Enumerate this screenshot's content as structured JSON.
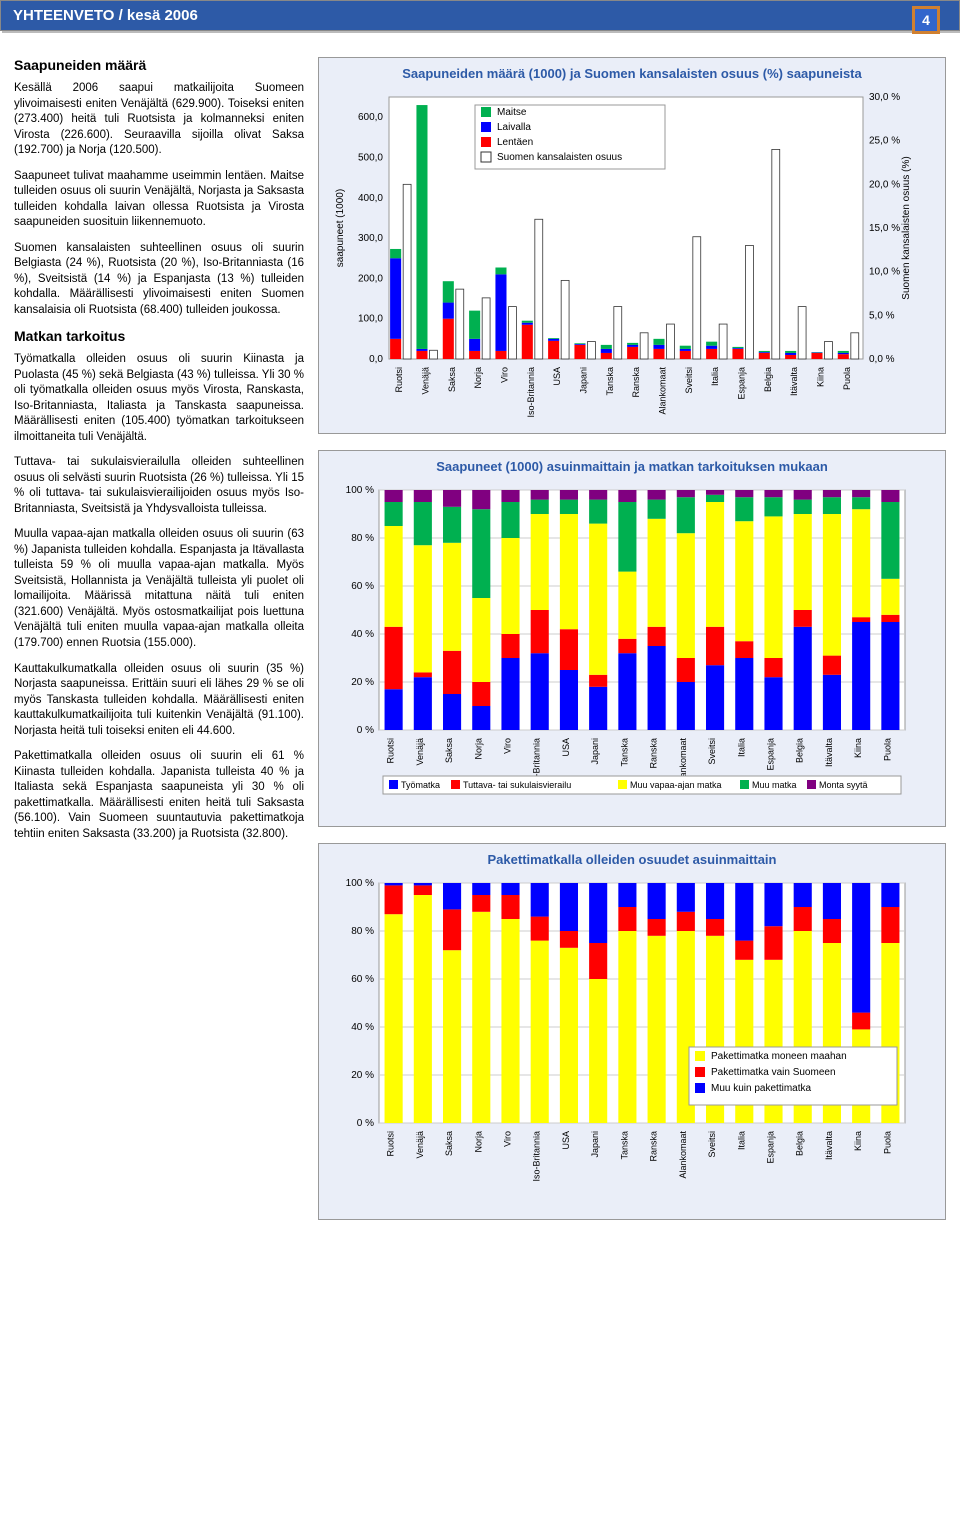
{
  "header": {
    "title": "YHTEENVETO / kesä 2006",
    "page_number": "4"
  },
  "left_column": {
    "section1_title": "Saapuneiden määrä",
    "section1_paragraphs": [
      "Kesällä 2006 saapui matkailijoita Suomeen ylivoimaisesti eniten Venäjältä (629.900). Toiseksi eniten (273.400) heitä tuli Ruotsista ja kolmanneksi eniten Virosta (226.600). Seuraavilla sijoilla olivat Saksa (192.700) ja Norja (120.500).",
      "Saapuneet tulivat maahamme useimmin lentäen. Maitse tulleiden osuus oli suurin Venäjältä, Norjasta ja Saksasta tulleiden kohdalla laivan ollessa Ruotsista ja Virosta saapuneiden suosituin liikennemuoto.",
      "Suomen kansalaisten suhteellinen osuus oli suurin Belgiasta (24 %), Ruotsista (20 %), Iso-Britanniasta (16 %), Sveitsistä (14 %) ja Espanjasta (13 %) tulleiden kohdalla. Määrällisesti ylivoimaisesti eniten Suomen kansalaisia oli Ruotsista (68.400) tulleiden joukossa."
    ],
    "section2_title": "Matkan tarkoitus",
    "section2_paragraphs": [
      "Työmatkalla olleiden osuus oli suurin Kiinasta ja Puolasta (45 %) sekä Belgiasta (43 %) tulleissa. Yli 30 % oli työmatkalla olleiden osuus myös Virosta, Ranskasta, Iso-Britanniasta, Italiasta ja Tanskasta saapuneissa. Määrällisesti eniten (105.400) työmatkan tarkoitukseen ilmoittaneita tuli Venäjältä.",
      "Tuttava- tai sukulaisvierailulla olleiden suhteellinen osuus oli selvästi suurin Ruotsista (26 %) tulleissa. Yli 15 % oli tuttava- tai sukulaisvierailijoiden osuus myös Iso-Britanniasta, Sveitsistä ja Yhdysvalloista tulleissa.",
      "Muulla vapaa-ajan matkalla olleiden osuus oli suurin (63 %) Japanista tulleiden kohdalla. Espanjasta ja Itävallasta tulleista 59 % oli muulla vapaa-ajan matkalla. Myös Sveitsistä, Hollannista ja Venäjältä tulleista yli puolet oli lomailijoita. Määrissä mitattuna näitä tuli eniten (321.600) Venäjältä. Myös ostosmatkailijat pois luettuna Venäjältä tuli eniten muulla vapaa-ajan matkalla olleita (179.700) ennen Ruotsia (155.000).",
      "Kauttakulkumatkalla olleiden osuus oli suurin (35 %) Norjasta saapuneissa. Erittäin suuri eli lähes 29 % se oli myös Tanskasta tulleiden kohdalla. Määrällisesti eniten kauttakulkumatkailijoita tuli kuitenkin Venäjältä (91.100). Norjasta heitä tuli toiseksi eniten eli 44.600.",
      "Pakettimatkalla olleiden osuus oli suurin eli 61 % Kiinasta tulleiden kohdalla. Japanista tulleista 40 % ja Italiasta sekä Espanjasta saapuneista yli 30 % oli pakettimatkalla. Määrällisesti eniten heitä tuli Saksasta (56.100). Vain Suomeen suuntautuvia pakettimatkoja tehtiin eniten Saksasta (33.200) ja Ruotsista (32.800)."
    ]
  },
  "chart1": {
    "title": "Saapuneiden määrä (1000) ja Suomen kansalaisten osuus (%) saapuneista",
    "type": "stacked-bar-with-line",
    "ylabel_left": "saapuneet (1000)",
    "ylabel_right": "Suomen kansalaisten osuus (%)",
    "yticks_left": [
      0,
      100,
      200,
      300,
      400,
      500,
      600
    ],
    "yticks_right": [
      "0,0 %",
      "5,0 %",
      "10,0 %",
      "15,0 %",
      "20,0 %",
      "25,0 %",
      "30,0 %"
    ],
    "ytick_labels_left": [
      "0,0",
      "100,0",
      "200,0",
      "300,0",
      "400,0",
      "500,0",
      "600,0"
    ],
    "ylim_left": [
      0,
      650
    ],
    "ylim_right": [
      0,
      30
    ],
    "legend_bar": [
      "Maitse",
      "Laivalla",
      "Lentäen",
      "Suomen kansalaisten osuus"
    ],
    "legend_colors": [
      "#00b050",
      "#0000ff",
      "#ff0000",
      "#ffffff"
    ],
    "categories": [
      "Ruotsi",
      "Venäjä",
      "Saksa",
      "Norja",
      "Viro",
      "Iso-Britannia",
      "USA",
      "Japani",
      "Tanska",
      "Ranska",
      "Alankomaat",
      "Sveitsi",
      "Italia",
      "Espanja",
      "Belgia",
      "Itävalta",
      "Kiina",
      "Puola"
    ],
    "stack_colors": [
      "#ff0000",
      "#0000ff",
      "#00b050"
    ],
    "data": [
      {
        "lentaen": 50,
        "laivalla": 200,
        "maitse": 23,
        "pct": 20
      },
      {
        "lentaen": 20,
        "laivalla": 5,
        "maitse": 605,
        "pct": 1
      },
      {
        "lentaen": 100,
        "laivalla": 40,
        "maitse": 53,
        "pct": 8
      },
      {
        "lentaen": 20,
        "laivalla": 30,
        "maitse": 70,
        "pct": 7
      },
      {
        "lentaen": 20,
        "laivalla": 190,
        "maitse": 17,
        "pct": 6
      },
      {
        "lentaen": 85,
        "laivalla": 5,
        "maitse": 5,
        "pct": 16
      },
      {
        "lentaen": 45,
        "laivalla": 5,
        "maitse": 2,
        "pct": 9
      },
      {
        "lentaen": 35,
        "laivalla": 2,
        "maitse": 2,
        "pct": 2
      },
      {
        "lentaen": 15,
        "laivalla": 10,
        "maitse": 10,
        "pct": 6
      },
      {
        "lentaen": 30,
        "laivalla": 5,
        "maitse": 5,
        "pct": 3
      },
      {
        "lentaen": 25,
        "laivalla": 10,
        "maitse": 15,
        "pct": 4
      },
      {
        "lentaen": 20,
        "laivalla": 5,
        "maitse": 8,
        "pct": 14
      },
      {
        "lentaen": 25,
        "laivalla": 8,
        "maitse": 10,
        "pct": 4
      },
      {
        "lentaen": 25,
        "laivalla": 2,
        "maitse": 3,
        "pct": 13
      },
      {
        "lentaen": 15,
        "laivalla": 2,
        "maitse": 3,
        "pct": 24
      },
      {
        "lentaen": 10,
        "laivalla": 5,
        "maitse": 5,
        "pct": 6
      },
      {
        "lentaen": 15,
        "laivalla": 1,
        "maitse": 1,
        "pct": 2
      },
      {
        "lentaen": 12,
        "laivalla": 3,
        "maitse": 5,
        "pct": 3
      }
    ]
  },
  "chart2": {
    "title": "Saapuneet (1000) asuinmaittain ja matkan tarkoituksen mukaan",
    "type": "stacked-bar-100",
    "yticks": [
      "0 %",
      "20 %",
      "40 %",
      "60 %",
      "80 %",
      "100 %"
    ],
    "categories": [
      "Ruotsi",
      "Venäjä",
      "Saksa",
      "Norja",
      "Viro",
      "Iso-Britannia",
      "USA",
      "Japani",
      "Tanska",
      "Ranska",
      "Alankomaat",
      "Sveitsi",
      "Italia",
      "Espanja",
      "Belgia",
      "Itävalta",
      "Kiina",
      "Puola"
    ],
    "legend": [
      "Työmatka",
      "Tuttava- tai sukulaisvierailu",
      "Muu vapaa-ajan matka",
      "Muu matka",
      "Monta syytä"
    ],
    "legend_colors": [
      "#0000ff",
      "#ff0000",
      "#ffff00",
      "#00b050",
      "#800080"
    ],
    "data": [
      {
        "tyomatka": 17,
        "tuttava": 26,
        "vapaa": 42,
        "muu": 10,
        "monta": 5
      },
      {
        "tyomatka": 22,
        "tuttava": 2,
        "vapaa": 53,
        "muu": 18,
        "monta": 5
      },
      {
        "tyomatka": 15,
        "tuttava": 18,
        "vapaa": 45,
        "muu": 15,
        "monta": 7
      },
      {
        "tyomatka": 10,
        "tuttava": 10,
        "vapaa": 35,
        "muu": 37,
        "monta": 8
      },
      {
        "tyomatka": 30,
        "tuttava": 10,
        "vapaa": 40,
        "muu": 15,
        "monta": 5
      },
      {
        "tyomatka": 32,
        "tuttava": 18,
        "vapaa": 40,
        "muu": 6,
        "monta": 4
      },
      {
        "tyomatka": 25,
        "tuttava": 17,
        "vapaa": 48,
        "muu": 6,
        "monta": 4
      },
      {
        "tyomatka": 18,
        "tuttava": 5,
        "vapaa": 63,
        "muu": 10,
        "monta": 4
      },
      {
        "tyomatka": 32,
        "tuttava": 6,
        "vapaa": 28,
        "muu": 29,
        "monta": 5
      },
      {
        "tyomatka": 35,
        "tuttava": 8,
        "vapaa": 45,
        "muu": 8,
        "monta": 4
      },
      {
        "tyomatka": 20,
        "tuttava": 10,
        "vapaa": 52,
        "muu": 15,
        "monta": 3
      },
      {
        "tyomatka": 27,
        "tuttava": 16,
        "vapaa": 52,
        "muu": 3,
        "monta": 2
      },
      {
        "tyomatka": 30,
        "tuttava": 7,
        "vapaa": 50,
        "muu": 10,
        "monta": 3
      },
      {
        "tyomatka": 22,
        "tuttava": 8,
        "vapaa": 59,
        "muu": 8,
        "monta": 3
      },
      {
        "tyomatka": 43,
        "tuttava": 7,
        "vapaa": 40,
        "muu": 6,
        "monta": 4
      },
      {
        "tyomatka": 23,
        "tuttava": 8,
        "vapaa": 59,
        "muu": 7,
        "monta": 3
      },
      {
        "tyomatka": 45,
        "tuttava": 2,
        "vapaa": 45,
        "muu": 5,
        "monta": 3
      },
      {
        "tyomatka": 45,
        "tuttava": 3,
        "vapaa": 15,
        "muu": 32,
        "monta": 5
      }
    ]
  },
  "chart3": {
    "title": "Pakettimatkalla olleiden osuudet asuinmaittain",
    "type": "stacked-bar-100",
    "yticks": [
      "0 %",
      "20 %",
      "40 %",
      "60 %",
      "80 %",
      "100 %"
    ],
    "categories": [
      "Ruotsi",
      "Venäjä",
      "Saksa",
      "Norja",
      "Viro",
      "Iso-Britannia",
      "USA",
      "Japani",
      "Tanska",
      "Ranska",
      "Alankomaat",
      "Sveitsi",
      "Italia",
      "Espanja",
      "Belgia",
      "Itävalta",
      "Kiina",
      "Puola"
    ],
    "legend": [
      "Pakettimatka moneen maahan",
      "Pakettimatka vain Suomeen",
      "Muu kuin pakettimatka"
    ],
    "legend_colors": [
      "#ffff00",
      "#ff0000",
      "#0000ff"
    ],
    "data": [
      {
        "muu": 87,
        "suomi": 12,
        "moneen": 1
      },
      {
        "muu": 95,
        "suomi": 4,
        "moneen": 1
      },
      {
        "muu": 72,
        "suomi": 17,
        "moneen": 11
      },
      {
        "muu": 88,
        "suomi": 7,
        "moneen": 5
      },
      {
        "muu": 85,
        "suomi": 10,
        "moneen": 5
      },
      {
        "muu": 76,
        "suomi": 10,
        "moneen": 14
      },
      {
        "muu": 73,
        "suomi": 7,
        "moneen": 20
      },
      {
        "muu": 60,
        "suomi": 15,
        "moneen": 25
      },
      {
        "muu": 80,
        "suomi": 10,
        "moneen": 10
      },
      {
        "muu": 78,
        "suomi": 7,
        "moneen": 15
      },
      {
        "muu": 80,
        "suomi": 8,
        "moneen": 12
      },
      {
        "muu": 78,
        "suomi": 7,
        "moneen": 15
      },
      {
        "muu": 68,
        "suomi": 8,
        "moneen": 24
      },
      {
        "muu": 68,
        "suomi": 14,
        "moneen": 18
      },
      {
        "muu": 80,
        "suomi": 10,
        "moneen": 10
      },
      {
        "muu": 75,
        "suomi": 10,
        "moneen": 15
      },
      {
        "muu": 39,
        "suomi": 7,
        "moneen": 54
      },
      {
        "muu": 75,
        "suomi": 15,
        "moneen": 10
      }
    ]
  }
}
